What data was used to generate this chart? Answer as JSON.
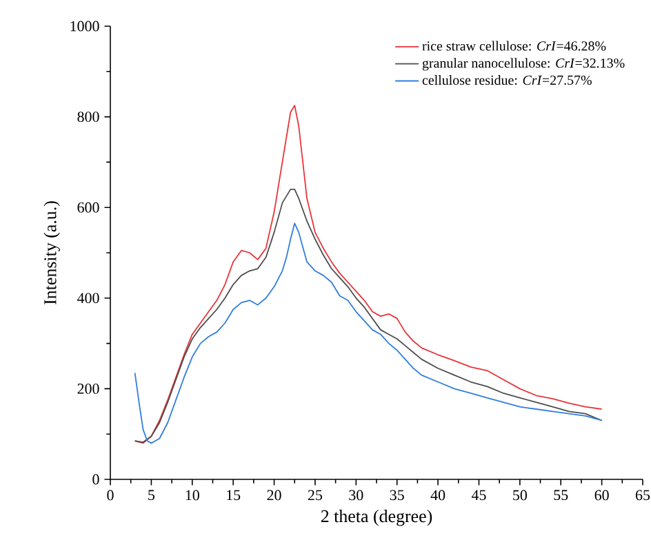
{
  "chart_data": {
    "type": "line",
    "xlabel": "2 theta (degree)",
    "ylabel": "Intensity (a.u.)",
    "xlim": [
      0,
      65
    ],
    "xticks": [
      0,
      5,
      10,
      15,
      20,
      25,
      30,
      35,
      40,
      45,
      50,
      55,
      60,
      65
    ],
    "ylim": [
      0,
      1000
    ],
    "yticks": [
      0,
      200,
      400,
      600,
      800,
      1000
    ],
    "legend": "top right",
    "grid": false,
    "marker": "none",
    "line_style": "solid",
    "series": [
      {
        "name": "rice straw cellulose: *CrI*=46.28%",
        "color": "#e8333a",
        "x": [
          3,
          4,
          5,
          6,
          7,
          8,
          9,
          10,
          11,
          12,
          13,
          14,
          15,
          16,
          17,
          18,
          19,
          20,
          21,
          22,
          22.5,
          23,
          24,
          25,
          26,
          27,
          28,
          29,
          30,
          31,
          32,
          33,
          34,
          35,
          36,
          37,
          38,
          40,
          42,
          44,
          46,
          48,
          50,
          52,
          54,
          56,
          58,
          60
        ],
        "values": [
          85,
          80,
          95,
          130,
          175,
          225,
          275,
          320,
          345,
          370,
          395,
          430,
          480,
          505,
          500,
          485,
          510,
          590,
          700,
          810,
          825,
          780,
          620,
          545,
          510,
          480,
          455,
          435,
          415,
          395,
          370,
          360,
          365,
          355,
          325,
          305,
          290,
          275,
          262,
          248,
          240,
          220,
          200,
          185,
          178,
          168,
          160,
          155
        ]
      },
      {
        "name": "granular nanocellulose: *CrI*=32.13%",
        "color": "#4d4d4d",
        "x": [
          3,
          4,
          5,
          6,
          7,
          8,
          9,
          10,
          11,
          12,
          13,
          14,
          15,
          16,
          17,
          18,
          19,
          20,
          21,
          22,
          22.5,
          23,
          24,
          25,
          26,
          27,
          28,
          29,
          30,
          31,
          32,
          33,
          34,
          35,
          36,
          37,
          38,
          40,
          42,
          44,
          46,
          48,
          50,
          52,
          54,
          56,
          58,
          60
        ],
        "values": [
          85,
          82,
          95,
          125,
          170,
          220,
          270,
          310,
          335,
          355,
          375,
          400,
          430,
          450,
          460,
          465,
          490,
          545,
          610,
          640,
          640,
          620,
          570,
          530,
          495,
          465,
          445,
          425,
          400,
          380,
          355,
          330,
          320,
          310,
          295,
          280,
          265,
          245,
          230,
          215,
          205,
          190,
          180,
          170,
          160,
          150,
          145,
          130
        ]
      },
      {
        "name": "cellulose residue: *CrI*=27.57%",
        "color": "#2f7de1",
        "x": [
          3,
          3.5,
          4,
          4.5,
          5,
          6,
          7,
          8,
          9,
          10,
          11,
          12,
          13,
          14,
          15,
          16,
          17,
          18,
          19,
          20,
          21,
          21.5,
          22,
          22.5,
          23,
          24,
          25,
          26,
          27,
          28,
          29,
          30,
          31,
          32,
          33,
          34,
          35,
          36,
          37,
          38,
          40,
          42,
          44,
          46,
          48,
          50,
          52,
          54,
          56,
          58,
          60
        ],
        "values": [
          235,
          170,
          110,
          85,
          80,
          90,
          125,
          175,
          225,
          270,
          300,
          315,
          325,
          345,
          375,
          390,
          395,
          385,
          400,
          425,
          460,
          490,
          530,
          565,
          545,
          480,
          460,
          450,
          435,
          405,
          395,
          370,
          350,
          330,
          320,
          300,
          285,
          265,
          245,
          230,
          215,
          200,
          190,
          180,
          170,
          160,
          155,
          150,
          145,
          140,
          130
        ]
      }
    ]
  }
}
